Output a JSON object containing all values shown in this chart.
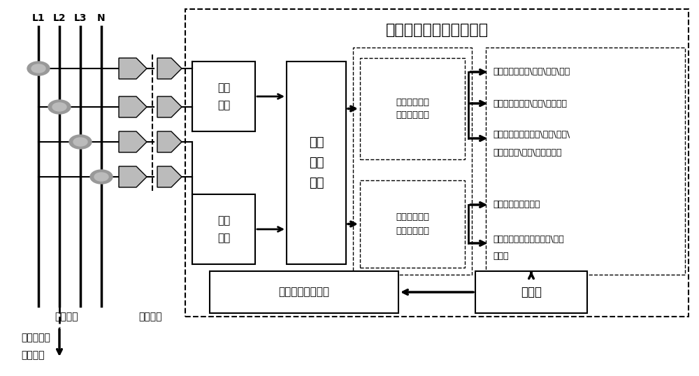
{
  "title": "道岔转撤机故障检测系统",
  "bg_color": "#ffffff",
  "line_color": "#000000",
  "lines": [
    "L1",
    "L2",
    "L3",
    "N"
  ],
  "left_label1": "设备机房",
  "left_label2": "光电隔离",
  "bottom_label1": "道岔转辙机",
  "bottom_label2": "安装现场",
  "box1_text": "电流\n采样",
  "box2_text": "电压\n采样",
  "box3_text": "故障\n分析\n模块",
  "box4_text": "道岔动作期间\n状态监测模块",
  "box5_text": "道岔受电期间\n状态监测模块",
  "box6_text": "监测操作管理平台",
  "box7_text": "数据库",
  "info1_text": "运行状态：伸出\\缩入\\左位\\右位",
  "info2_text": "过程参数：扭力\\电流\\运行时间",
  "info3a_text": "故障信息：扭力过载\\过流\\超时\\",
  "info3b_text": "三相不平衡\\单相\\功率超载等",
  "info4_text": "过程参数：表示电压",
  "info5a_text": "故障信息：表示电压开路\\压降",
  "info5b_text": "太大等"
}
